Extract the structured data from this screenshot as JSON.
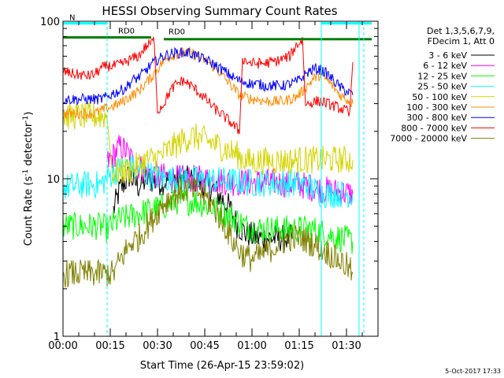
{
  "chart_data": {
    "type": "line",
    "title": "HESSI Observing Summary Count Rates",
    "xlabel": "Start Time (26-Apr-15 23:59:02)",
    "ylabel_main": "Count Rate (s",
    "ylabel_sup": "-1",
    "ylabel_tail": " detector",
    "ylabel_end": ")",
    "yscale": "log",
    "ylim": [
      1,
      100
    ],
    "xlim_minutes": [
      0,
      100
    ],
    "y_ticks": [
      {
        "value": 1,
        "label": "1"
      },
      {
        "value": 10,
        "label": "10"
      },
      {
        "value": 100,
        "label": "100"
      }
    ],
    "x_ticks": [
      {
        "value": 0,
        "label": "00:00"
      },
      {
        "value": 15,
        "label": "00:15"
      },
      {
        "value": 30,
        "label": "00:30"
      },
      {
        "value": 45,
        "label": "00:45"
      },
      {
        "value": 60,
        "label": "01:00"
      },
      {
        "value": 75,
        "label": "01:15"
      },
      {
        "value": 90,
        "label": "01:30"
      }
    ],
    "legend_header": [
      "Det 1,3,5,6,7,9,",
      "FDecim 1, Att 0"
    ],
    "series": [
      {
        "name": "3 - 6 keV",
        "color": "#000000",
        "x": [
          0,
          10,
          16,
          18,
          21,
          24,
          27,
          30,
          36,
          42,
          48,
          53,
          55,
          58,
          62,
          66,
          70,
          73,
          75,
          79,
          83,
          88,
          92
        ],
        "values": [
          null,
          null,
          6.3,
          8.5,
          10.5,
          9,
          10,
          9.5,
          10,
          9.8,
          8.5,
          6.5,
          5.2,
          4.5,
          4.2,
          4.2,
          4.2,
          4.2,
          null,
          null,
          null,
          null,
          null
        ]
      },
      {
        "name": "6 - 12 keV",
        "color": "#ff00ff",
        "x": [
          14,
          16,
          18,
          20,
          22,
          24,
          27,
          30,
          35,
          42,
          48,
          54,
          58,
          62,
          67,
          72,
          75,
          79,
          83,
          88,
          92
        ],
        "values": [
          12.5,
          14,
          16,
          15,
          13,
          12,
          11,
          10.5,
          10,
          10,
          9.8,
          9.5,
          9.5,
          9.5,
          9.5,
          9.2,
          9.2,
          8.8,
          8.5,
          8.2,
          8
        ]
      },
      {
        "name": "12 - 25 keV",
        "color": "#00ff00",
        "x": [
          0,
          5,
          10,
          12,
          14,
          16,
          18,
          22,
          26,
          30,
          36,
          42,
          48,
          55,
          58,
          62,
          66,
          70,
          75,
          79,
          83,
          88,
          92
        ],
        "values": [
          5,
          5,
          5,
          5,
          4.8,
          5.2,
          5.5,
          5.8,
          6.2,
          6.5,
          7.2,
          7.2,
          6.5,
          5.5,
          5,
          4.8,
          4.8,
          4.8,
          4.8,
          4.8,
          4.5,
          4.2,
          4
        ]
      },
      {
        "name": "25 - 50 keV",
        "color": "#00ffff",
        "x": [
          0,
          4,
          8,
          12,
          16,
          20,
          24,
          28,
          32,
          38,
          44,
          50,
          55,
          60,
          66,
          72,
          76,
          78,
          80,
          82,
          86,
          90,
          92
        ],
        "values": [
          8.8,
          9,
          9.2,
          9.2,
          11,
          12,
          11.5,
          10.5,
          10,
          10,
          9.8,
          9.8,
          9.6,
          9.4,
          9.4,
          9.4,
          9.2,
          9,
          8.5,
          8,
          8,
          8,
          8
        ]
      },
      {
        "name": "50 - 100 keV",
        "color": "#d4d400",
        "x": [
          0,
          6,
          10,
          14,
          16,
          18,
          22,
          26,
          29,
          30,
          32,
          35,
          38,
          41,
          44,
          47,
          50,
          53,
          56,
          58,
          60,
          63,
          66,
          70,
          73,
          75,
          77,
          79,
          81,
          83,
          85,
          88,
          91,
          92
        ],
        "values": [
          25,
          25,
          25,
          25,
          11,
          11,
          11.5,
          13,
          13.5,
          13.5,
          14.5,
          16,
          17.5,
          18.5,
          18,
          17,
          16,
          15,
          14,
          13,
          12.8,
          13,
          13,
          13,
          13,
          13.2,
          13.2,
          13.2,
          13.2,
          13.2,
          13.2,
          13.2,
          13.2,
          13.2
        ]
      },
      {
        "name": "100 - 300 keV",
        "color": "#ff8c00",
        "x": [
          0,
          6,
          10,
          12,
          14,
          16,
          18,
          20,
          22,
          24,
          26,
          28,
          30,
          32,
          34,
          36,
          38,
          40,
          42,
          44,
          46,
          48,
          50,
          52,
          54,
          56,
          58,
          60,
          62,
          64,
          66,
          68,
          70,
          72,
          74,
          76,
          78,
          80,
          82,
          84,
          86,
          88,
          90,
          92
        ],
        "values": [
          26,
          26,
          26,
          27,
          28,
          29,
          30,
          32,
          34,
          36,
          40,
          44,
          50,
          56,
          60,
          62,
          63,
          63,
          61,
          58,
          55,
          51,
          47,
          42,
          38,
          34,
          33,
          32,
          32,
          31,
          31,
          31,
          31,
          32,
          33,
          36,
          40,
          44,
          46,
          42,
          38,
          34,
          32,
          30
        ]
      },
      {
        "name": "300 - 800 keV",
        "color": "#0000ff",
        "x": [
          0,
          6,
          10,
          12,
          14,
          16,
          18,
          20,
          22,
          24,
          26,
          28,
          30,
          32,
          34,
          36,
          38,
          40,
          42,
          44,
          46,
          48,
          50,
          52,
          54,
          56,
          58,
          60,
          62,
          64,
          66,
          68,
          70,
          72,
          74,
          76,
          78,
          80,
          82,
          84,
          86,
          88,
          90,
          92
        ],
        "values": [
          32,
          32,
          32,
          32,
          33,
          35,
          36,
          38,
          42,
          44,
          48,
          53,
          57,
          60,
          62,
          63,
          63,
          63,
          61,
          58,
          56,
          53,
          50,
          47,
          44,
          42,
          41,
          40,
          40,
          39,
          39,
          39,
          39,
          40,
          41,
          44,
          48,
          50,
          49,
          46,
          42,
          38,
          36,
          34
        ]
      },
      {
        "name": "800 - 7000 keV",
        "color": "#ff0000",
        "x": [
          0,
          4,
          8,
          10,
          12,
          14,
          16,
          18,
          20,
          22,
          24,
          26,
          28,
          29,
          30,
          32,
          34,
          36,
          38,
          40,
          42,
          44,
          46,
          48,
          50,
          52,
          54,
          56,
          57,
          58,
          60,
          62,
          64,
          66,
          68,
          70,
          72,
          74,
          76,
          77,
          78,
          80,
          82,
          84,
          86,
          88,
          90,
          91,
          92
        ],
        "values": [
          48,
          46,
          45,
          46,
          50,
          52,
          52,
          53,
          55,
          58,
          60,
          68,
          73,
          76,
          27,
          30,
          36,
          40,
          42,
          40,
          37,
          34,
          31,
          28,
          26,
          24,
          22,
          20,
          58,
          56,
          54,
          54,
          54,
          55,
          56,
          58,
          60,
          70,
          76,
          30,
          30,
          31,
          31,
          30,
          29,
          28,
          27,
          25,
          55
        ]
      },
      {
        "name": "7000 - 20000 keV",
        "color": "#808000",
        "x": [
          0,
          4,
          8,
          12,
          16,
          18,
          20,
          22,
          24,
          26,
          28,
          30,
          32,
          34,
          36,
          38,
          40,
          42,
          44,
          46,
          48,
          50,
          52,
          54,
          56,
          58,
          60,
          62,
          64,
          66,
          68,
          70,
          72,
          74,
          76,
          78,
          80,
          82,
          84,
          86,
          88,
          90,
          92
        ],
        "values": [
          2.5,
          2.5,
          2.5,
          2.5,
          2.5,
          3,
          3.5,
          4,
          4.2,
          4.8,
          5.4,
          6.2,
          7,
          7.6,
          8,
          8.5,
          8.6,
          8.4,
          8,
          7.4,
          6.5,
          5.6,
          4.8,
          4,
          3.5,
          3.2,
          3.1,
          3.2,
          3.4,
          3.6,
          3.8,
          4,
          4.2,
          4.2,
          4.2,
          4,
          3.8,
          3.6,
          3.4,
          3.2,
          3,
          2.8,
          2.5
        ]
      }
    ],
    "segments": [
      {
        "name": "night",
        "label": "N",
        "color": "#00ffff",
        "x0": 0,
        "x1": 14,
        "value": 97
      },
      {
        "name": "night",
        "label": "",
        "color": "#00ffff",
        "x0": 82,
        "x1": 98,
        "value": 97
      },
      {
        "name": "rd0",
        "label": "RD0",
        "color": "#008000",
        "x0": 32,
        "x1": 98,
        "value": 77
      },
      {
        "name": "rd1",
        "label": "RD0",
        "color": "#008000",
        "x0": 0,
        "x1": 28,
        "value": 79
      }
    ],
    "vertical_lines": [
      {
        "x": 14,
        "style": "dashed",
        "color": "#00ffff"
      },
      {
        "x": 82,
        "style": "solid",
        "color": "#00ffff"
      },
      {
        "x": 94,
        "style": "solid",
        "color": "#00ffff"
      },
      {
        "x": 95.5,
        "style": "dashed",
        "color": "#00ffff"
      }
    ],
    "timestamp": "5-Oct-2017 17:33"
  }
}
